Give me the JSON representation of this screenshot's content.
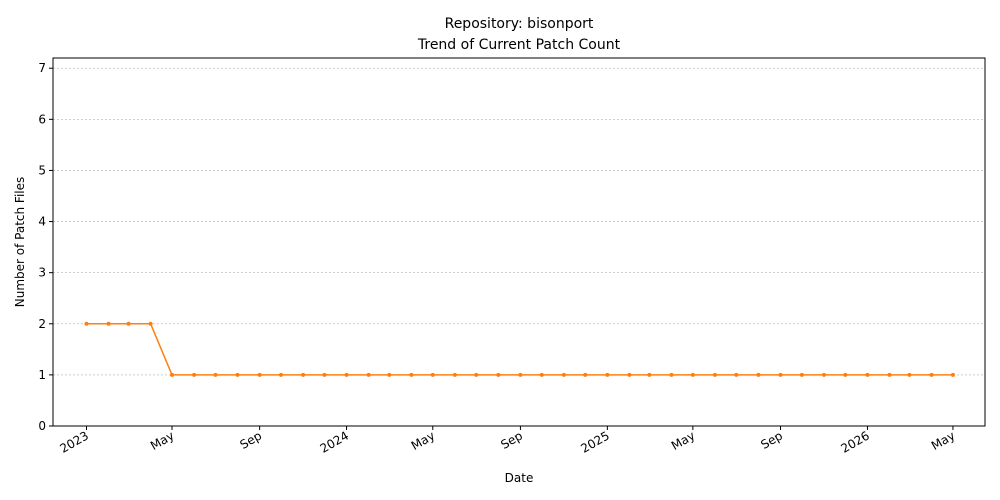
{
  "chart_data": {
    "type": "line",
    "title": "Repository: bisonport",
    "subtitle": "Trend of Current Patch Count",
    "xlabel": "Date",
    "ylabel": "Number of Patch Files",
    "ylim": [
      0,
      7.2
    ],
    "yticks": [
      0,
      1,
      2,
      3,
      4,
      5,
      6,
      7
    ],
    "xlim": [
      "2022-11-15",
      "2026-06-15"
    ],
    "xticks": [
      {
        "date": "2023-01-01",
        "label": "2023"
      },
      {
        "date": "2023-05-01",
        "label": "May"
      },
      {
        "date": "2023-09-01",
        "label": "Sep"
      },
      {
        "date": "2024-01-01",
        "label": "2024"
      },
      {
        "date": "2024-05-01",
        "label": "May"
      },
      {
        "date": "2024-09-01",
        "label": "Sep"
      },
      {
        "date": "2025-01-01",
        "label": "2025"
      },
      {
        "date": "2025-05-01",
        "label": "May"
      },
      {
        "date": "2025-09-01",
        "label": "Sep"
      },
      {
        "date": "2026-01-01",
        "label": "2026"
      },
      {
        "date": "2026-05-01",
        "label": "May"
      }
    ],
    "grid": "y-dashed",
    "series": [
      {
        "color": "#ff7f0e",
        "x": [
          "2023-01-01",
          "2023-02-01",
          "2023-03-01",
          "2023-04-01",
          "2023-05-01",
          "2023-06-01",
          "2023-07-01",
          "2023-08-01",
          "2023-09-01",
          "2023-10-01",
          "2023-11-01",
          "2023-12-01",
          "2024-01-01",
          "2024-02-01",
          "2024-03-01",
          "2024-04-01",
          "2024-05-01",
          "2024-06-01",
          "2024-07-01",
          "2024-08-01",
          "2024-09-01",
          "2024-10-01",
          "2024-11-01",
          "2024-12-01",
          "2025-01-01",
          "2025-02-01",
          "2025-03-01",
          "2025-04-01",
          "2025-05-01",
          "2025-06-01",
          "2025-07-01",
          "2025-08-01",
          "2025-09-01",
          "2025-10-01",
          "2025-11-01",
          "2025-12-01",
          "2026-01-01",
          "2026-02-01",
          "2026-03-01",
          "2026-04-01",
          "2026-05-01"
        ],
        "y": [
          2,
          2,
          2,
          2,
          1,
          1,
          1,
          1,
          1,
          1,
          1,
          1,
          1,
          1,
          1,
          1,
          1,
          1,
          1,
          1,
          1,
          1,
          1,
          1,
          1,
          1,
          1,
          1,
          1,
          1,
          1,
          1,
          1,
          1,
          1,
          1,
          1,
          1,
          1,
          1,
          1
        ]
      }
    ]
  }
}
